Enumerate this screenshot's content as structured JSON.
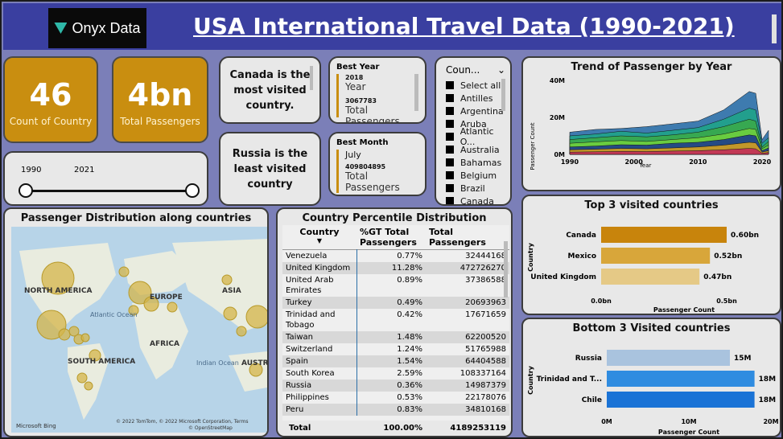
{
  "header": {
    "logo_text": "Onyx Data",
    "title": "USA International Travel Data  (1990-2021)"
  },
  "kpis": [
    {
      "value": "46",
      "label": "Count of Country"
    },
    {
      "value": "4bn",
      "label": "Total Passengers"
    }
  ],
  "notes": {
    "most": "Canada is the most  visited country.",
    "least": "Russia is the least visited country"
  },
  "year_slider": {
    "min": "1990",
    "max": "2021"
  },
  "best_year": {
    "title": "Best Year",
    "year": "2018",
    "year_label": "Year",
    "passengers": "3067783",
    "passengers_label": "Total Passengers"
  },
  "best_month": {
    "title": "Best Month",
    "month": "July",
    "passengers": "409804895",
    "passengers_label": "Total Passengers"
  },
  "country_slicer": {
    "title": "Coun...",
    "items": [
      "Select all",
      "Antilles",
      "Argentina",
      "Aruba",
      "Atlantic O...",
      "Australia",
      "Bahamas",
      "Belgium",
      "Brazil",
      "Canada"
    ]
  },
  "map": {
    "title": "Passenger Distribution along countries",
    "labels": {
      "na": "NORTH AMERICA",
      "eu": "EUROPE",
      "asia": "ASIA",
      "africa": "AFRICA",
      "sa": "SOUTH AMERICA",
      "atl": "Atlantic Ocean",
      "ind": "Indian Ocean",
      "aus": "AUSTRA"
    },
    "credits": "© 2022 TomTom, © 2022 Microsoft Corporation, Terms",
    "osm": "© OpenStreetMap",
    "bing": "Microsoft Bing"
  },
  "table": {
    "title": "Country Percentile Distribution",
    "headers": [
      "Country",
      "%GT Total Passengers",
      "Total Passengers"
    ],
    "rows": [
      [
        "Venezuela",
        "0.77%",
        "32444168"
      ],
      [
        "United Kingdom",
        "11.28%",
        "472726270"
      ],
      [
        "United Arab Emirates",
        "0.89%",
        "37386588"
      ],
      [
        "Turkey",
        "0.49%",
        "20693963"
      ],
      [
        "Trinidad and Tobago",
        "0.42%",
        "17671659"
      ],
      [
        "Taiwan",
        "1.48%",
        "62200520"
      ],
      [
        "Switzerland",
        "1.24%",
        "51765988"
      ],
      [
        "Spain",
        "1.54%",
        "64404588"
      ],
      [
        "South Korea",
        "2.59%",
        "108337164"
      ],
      [
        "Russia",
        "0.36%",
        "14987379"
      ],
      [
        "Philippines",
        "0.53%",
        "22178076"
      ],
      [
        "Peru",
        "0.83%",
        "34810168"
      ]
    ],
    "total": [
      "Total",
      "100.00%",
      "4189253119"
    ]
  },
  "trend": {
    "title": "Trend of Passenger by Year",
    "ylabel": "Passenger Count",
    "xlabel": "Year"
  },
  "top3": {
    "title": "Top 3 visited countries",
    "ylabel": "Country",
    "xlabel": "Passenger Count"
  },
  "bottom3": {
    "title": "Bottom 3 Visited countries",
    "ylabel": "Country",
    "xlabel": "Passenger Count"
  },
  "chart_data": [
    {
      "type": "area",
      "title": "Trend of Passenger by Year",
      "xlabel": "Year",
      "ylabel": "Passenger Count",
      "xlim": [
        1990,
        2021
      ],
      "ylim": [
        0,
        40000000
      ],
      "x_ticks": [
        "1990",
        "2000",
        "2010",
        "2020"
      ],
      "y_ticks": [
        "0M",
        "20M",
        "40M"
      ],
      "x": [
        1990,
        1994,
        1998,
        2002,
        2006,
        2010,
        2014,
        2018,
        2019,
        2020,
        2021
      ],
      "series": [
        {
          "color": "#2b6fa8",
          "values": [
            12000000,
            13500000,
            14000000,
            15000000,
            16500000,
            18000000,
            24000000,
            34000000,
            33000000,
            8000000,
            13000000
          ]
        },
        {
          "color": "#1fa38a",
          "values": [
            10000000,
            11000000,
            12500000,
            11500000,
            13000000,
            14500000,
            19000000,
            25000000,
            24000000,
            6000000,
            9000000
          ]
        },
        {
          "color": "#3aa84a",
          "values": [
            8000000,
            9000000,
            10000000,
            9500000,
            10500000,
            12000000,
            15000000,
            19000000,
            18000000,
            4000000,
            7000000
          ]
        },
        {
          "color": "#6fcf3e",
          "values": [
            6000000,
            6800000,
            7500000,
            7000000,
            8000000,
            9000000,
            11000000,
            14000000,
            13500000,
            3000000,
            5000000
          ]
        },
        {
          "color": "#1e3c8c",
          "values": [
            4000000,
            4500000,
            5200000,
            5000000,
            6000000,
            6500000,
            8000000,
            10500000,
            10000000,
            2000000,
            3500000
          ]
        },
        {
          "color": "#d4a020",
          "values": [
            2500000,
            2800000,
            3200000,
            3000000,
            3500000,
            4000000,
            5000000,
            6500000,
            6200000,
            1200000,
            2000000
          ]
        },
        {
          "color": "#c22f5a",
          "values": [
            1200000,
            1400000,
            1600000,
            1500000,
            1800000,
            2000000,
            2500000,
            3200000,
            3000000,
            600000,
            1000000
          ]
        }
      ]
    },
    {
      "type": "bar",
      "title": "Top 3 visited countries",
      "xlabel": "Passenger Count",
      "ylabel": "Country",
      "categories": [
        "Canada",
        "Mexico",
        "United Kingdom"
      ],
      "values": [
        0.6,
        0.52,
        0.47
      ],
      "value_labels": [
        "0.60bn",
        "0.52bn",
        "0.47bn"
      ],
      "unit": "bn",
      "colors": [
        "#c8840c",
        "#d8a63a",
        "#e5c986"
      ],
      "xlim": [
        0,
        0.6
      ],
      "x_ticks": [
        "0.0bn",
        "0.5bn"
      ]
    },
    {
      "type": "bar",
      "title": "Bottom 3 Visited countries",
      "xlabel": "Passenger Count",
      "ylabel": "Country",
      "categories": [
        "Russia",
        "Trinidad and T...",
        "Chile"
      ],
      "values": [
        15,
        18,
        18
      ],
      "value_labels": [
        "15M",
        "18M",
        "18M"
      ],
      "unit": "M",
      "colors": [
        "#a9c3de",
        "#2f8ce0",
        "#1a73d6"
      ],
      "xlim": [
        0,
        20
      ],
      "x_ticks": [
        "0M",
        "10M",
        "20M"
      ]
    }
  ]
}
